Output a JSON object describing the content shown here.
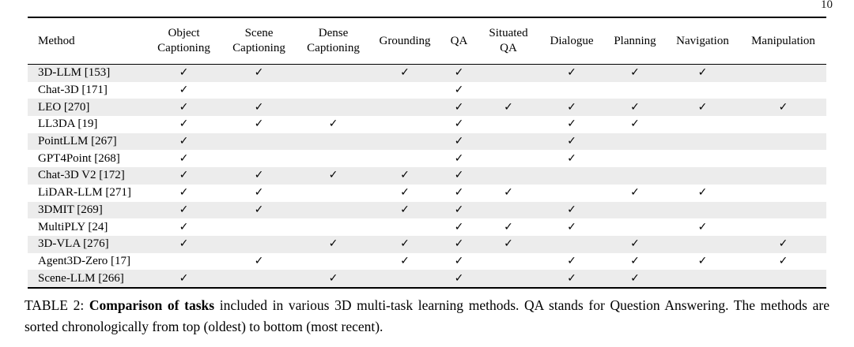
{
  "page": {
    "number": "10"
  },
  "table": {
    "check_glyph": "✓",
    "columns": [
      {
        "label": "Method",
        "align": "left"
      },
      {
        "label": "Object\nCaptioning"
      },
      {
        "label": "Scene\nCaptioning"
      },
      {
        "label": "Dense\nCaptioning"
      },
      {
        "label": "Grounding"
      },
      {
        "label": "QA"
      },
      {
        "label": "Situated\nQA"
      },
      {
        "label": "Dialogue"
      },
      {
        "label": "Planning"
      },
      {
        "label": "Navigation"
      },
      {
        "label": "Manipulation"
      }
    ],
    "rows": [
      {
        "method": "3D-LLM [153]",
        "checks": [
          1,
          1,
          0,
          1,
          1,
          0,
          1,
          1,
          1,
          0
        ]
      },
      {
        "method": "Chat-3D [171]",
        "checks": [
          1,
          0,
          0,
          0,
          1,
          0,
          0,
          0,
          0,
          0
        ]
      },
      {
        "method": "LEO [270]",
        "checks": [
          1,
          1,
          0,
          0,
          1,
          1,
          1,
          1,
          1,
          1
        ]
      },
      {
        "method": "LL3DA [19]",
        "checks": [
          1,
          1,
          1,
          0,
          1,
          0,
          1,
          1,
          0,
          0
        ]
      },
      {
        "method": "PointLLM [267]",
        "checks": [
          1,
          0,
          0,
          0,
          1,
          0,
          1,
          0,
          0,
          0
        ]
      },
      {
        "method": "GPT4Point [268]",
        "checks": [
          1,
          0,
          0,
          0,
          1,
          0,
          1,
          0,
          0,
          0
        ]
      },
      {
        "method": "Chat-3D V2 [172]",
        "checks": [
          1,
          1,
          1,
          1,
          1,
          0,
          0,
          0,
          0,
          0
        ]
      },
      {
        "method": "LiDAR-LLM [271]",
        "checks": [
          1,
          1,
          0,
          1,
          1,
          1,
          0,
          1,
          1,
          0
        ]
      },
      {
        "method": "3DMIT [269]",
        "checks": [
          1,
          1,
          0,
          1,
          1,
          0,
          1,
          0,
          0,
          0
        ]
      },
      {
        "method": "MultiPLY [24]",
        "checks": [
          1,
          0,
          0,
          0,
          1,
          1,
          1,
          0,
          1,
          0
        ]
      },
      {
        "method": "3D-VLA [276]",
        "checks": [
          1,
          0,
          1,
          1,
          1,
          1,
          0,
          1,
          0,
          1
        ]
      },
      {
        "method": "Agent3D-Zero [17]",
        "checks": [
          0,
          1,
          0,
          1,
          1,
          0,
          1,
          1,
          1,
          1
        ]
      },
      {
        "method": "Scene-LLM [266]",
        "checks": [
          1,
          0,
          1,
          0,
          1,
          0,
          1,
          1,
          0,
          0
        ]
      }
    ]
  },
  "caption": {
    "label": "TABLE 2: ",
    "bold": "Comparison of tasks",
    "rest": " included in various 3D multi-task learning methods. QA stands for Question Answering. The methods are sorted chronologically from top (oldest) to bottom (most recent)."
  },
  "colors": {
    "stripe": "#ececec",
    "rule": "#000000",
    "text": "#000000"
  }
}
